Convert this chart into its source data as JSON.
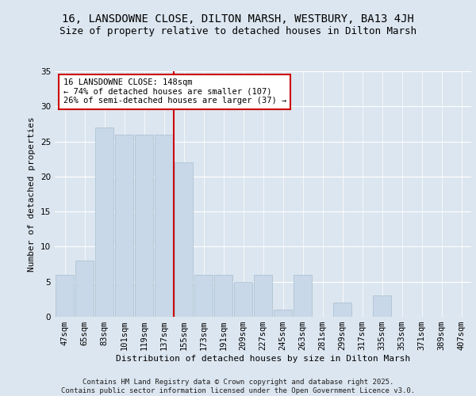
{
  "title": "16, LANSDOWNE CLOSE, DILTON MARSH, WESTBURY, BA13 4JH",
  "subtitle": "Size of property relative to detached houses in Dilton Marsh",
  "xlabel": "Distribution of detached houses by size in Dilton Marsh",
  "ylabel": "Number of detached properties",
  "categories": [
    "47sqm",
    "65sqm",
    "83sqm",
    "101sqm",
    "119sqm",
    "137sqm",
    "155sqm",
    "173sqm",
    "191sqm",
    "209sqm",
    "227sqm",
    "245sqm",
    "263sqm",
    "281sqm",
    "299sqm",
    "317sqm",
    "335sqm",
    "353sqm",
    "371sqm",
    "389sqm",
    "407sqm"
  ],
  "values": [
    6,
    8,
    27,
    26,
    26,
    26,
    22,
    6,
    6,
    5,
    6,
    1,
    6,
    0,
    2,
    0,
    3,
    0,
    0,
    0,
    0
  ],
  "bar_color": "#c8d8e8",
  "bar_edge_color": "#a8bece",
  "reference_line_x": 6.0,
  "reference_line_label": "16 LANSDOWNE CLOSE: 148sqm",
  "pct_smaller": "74% of detached houses are smaller (107)",
  "pct_larger": "26% of semi-detached houses are larger (37)",
  "annotation_box_color": "#ffffff",
  "annotation_box_edge": "#cc0000",
  "ref_line_color": "#cc0000",
  "ylim": [
    0,
    35
  ],
  "yticks": [
    0,
    5,
    10,
    15,
    20,
    25,
    30,
    35
  ],
  "background_color": "#dce6f0",
  "fig_background": "#dce6f0",
  "footer": "Contains HM Land Registry data © Crown copyright and database right 2025.\nContains public sector information licensed under the Open Government Licence v3.0.",
  "title_fontsize": 10,
  "subtitle_fontsize": 9,
  "axis_label_fontsize": 8,
  "tick_fontsize": 7.5,
  "annotation_fontsize": 7.5,
  "footer_fontsize": 6.5
}
